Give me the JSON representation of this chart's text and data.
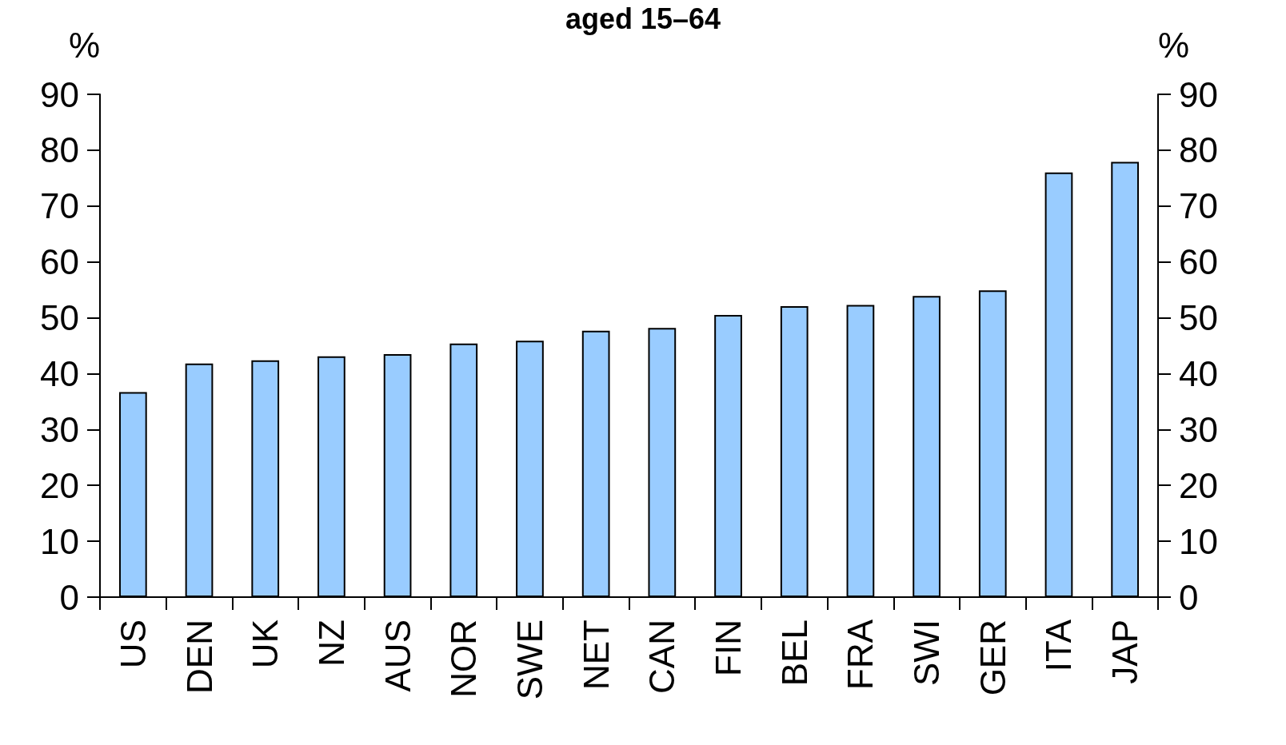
{
  "chart_data": {
    "type": "bar",
    "title": "aged 15–64",
    "ylabel": "%",
    "y2label": "%",
    "categories": [
      "US",
      "DEN",
      "UK",
      "NZ",
      "AUS",
      "NOR",
      "SWE",
      "NET",
      "CAN",
      "FIN",
      "BEL",
      "FRA",
      "SWI",
      "GER",
      "ITA",
      "JAP"
    ],
    "values": [
      36.7,
      41.8,
      42.4,
      43.1,
      43.5,
      45.4,
      45.9,
      47.7,
      48.2,
      50.5,
      52.1,
      52.3,
      53.9,
      54.9,
      76.0,
      77.9
    ],
    "color": "#99ccff",
    "ylim": [
      0,
      90
    ],
    "yticks": [
      0,
      10,
      20,
      30,
      40,
      50,
      60,
      70,
      80,
      90
    ],
    "y2lim": [
      0,
      90
    ],
    "y2ticks": [
      0,
      10,
      20,
      30,
      40,
      50,
      60,
      70,
      80,
      90
    ],
    "grid": false
  }
}
